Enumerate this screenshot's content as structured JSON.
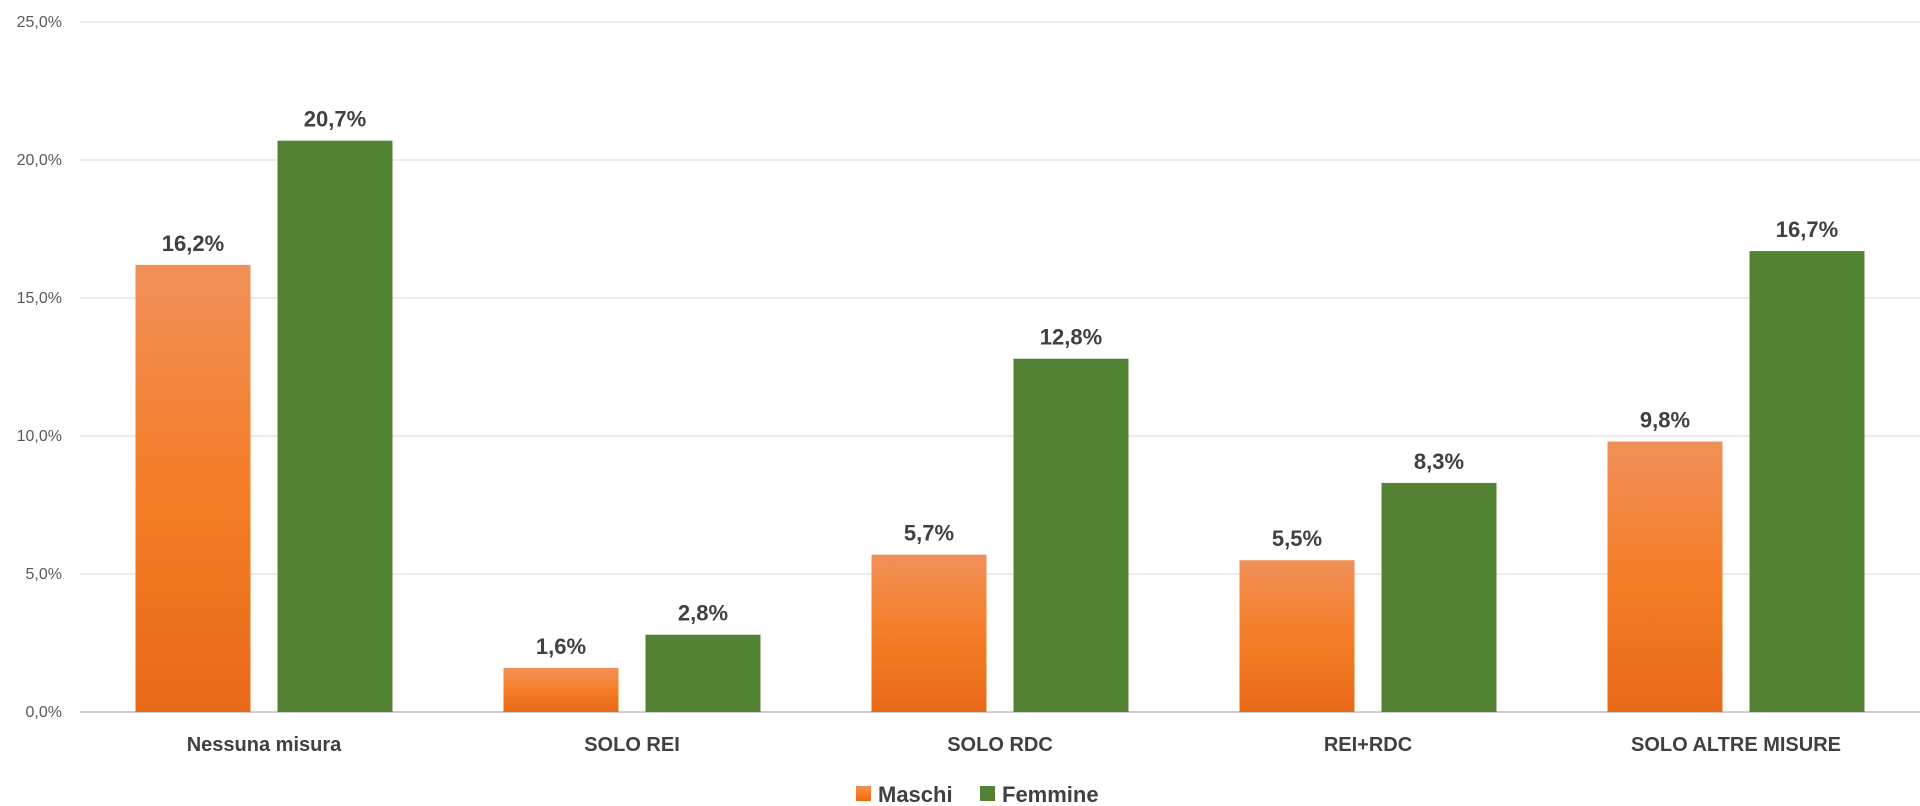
{
  "chart_data": {
    "type": "bar",
    "categories": [
      "Nessuna misura",
      "SOLO REI",
      "SOLO RDC",
      "REI+RDC",
      "SOLO ALTRE MISURE"
    ],
    "series": [
      {
        "name": "Maschi",
        "values": [
          16.2,
          1.6,
          5.7,
          5.5,
          9.8
        ],
        "labels": [
          "16,2%",
          "1,6%",
          "5,7%",
          "5,5%",
          "9,8%"
        ],
        "color": "#F07F2A",
        "gradient": [
          "#F09058",
          "#F57E28",
          "#E86A18"
        ]
      },
      {
        "name": "Femmine",
        "values": [
          20.7,
          2.8,
          12.8,
          8.3,
          16.7
        ],
        "labels": [
          "20,7%",
          "2,8%",
          "12,8%",
          "8,3%",
          "16,7%"
        ],
        "color": "#548235"
      }
    ],
    "ylim": [
      0,
      25
    ],
    "yticks": [
      "0,0%",
      "5,0%",
      "10,0%",
      "15,0%",
      "20,0%",
      "25,0%"
    ],
    "grid": true,
    "legend_position": "bottom-center",
    "xlabel": "",
    "ylabel": ""
  }
}
